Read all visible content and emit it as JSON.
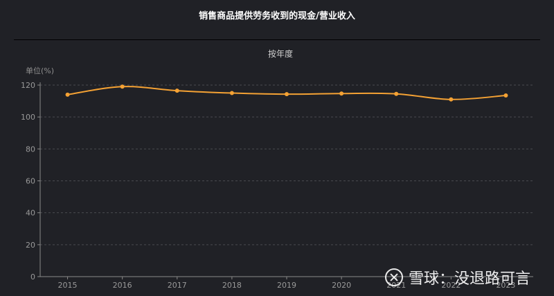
{
  "header": {
    "title": "销售商品提供劳务收到的现金/营业收入"
  },
  "chart_data": {
    "type": "line",
    "subtitle": "按年度",
    "ylabel": "单位(%)",
    "xlabel": "",
    "categories": [
      "2015",
      "2016",
      "2017",
      "2018",
      "2019",
      "2020",
      "2021",
      "2022",
      "2023"
    ],
    "series": [
      {
        "values": [
          114,
          119,
          116.5,
          115,
          114.3,
          114.7,
          114.5,
          111,
          113.5
        ]
      }
    ],
    "ylim": [
      0,
      120
    ],
    "yticks": [
      0,
      20,
      40,
      60,
      80,
      100,
      120
    ],
    "grid": true,
    "smooth": true,
    "line_color": "#f5a234"
  },
  "watermark": {
    "text": "雪球：没退路可言"
  }
}
